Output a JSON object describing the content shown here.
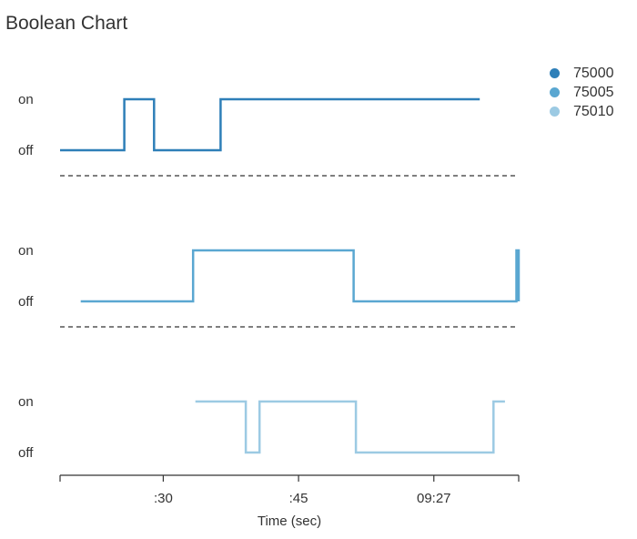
{
  "title": "Boolean Chart",
  "chart_data": {
    "type": "line",
    "title": "Boolean Chart",
    "xlabel": "Time (sec)",
    "x_ticks": [
      ":30",
      ":45",
      "09:27"
    ],
    "state_labels": [
      "on",
      "off"
    ],
    "series": [
      {
        "name": "75000",
        "color": "#2e7fb8",
        "points": [
          [
            0.0,
            0
          ],
          [
            0.14,
            0
          ],
          [
            0.14,
            1
          ],
          [
            0.205,
            1
          ],
          [
            0.205,
            0
          ],
          [
            0.35,
            0
          ],
          [
            0.35,
            1
          ],
          [
            0.915,
            1
          ]
        ]
      },
      {
        "name": "75005",
        "color": "#5aa7d1",
        "points": [
          [
            0.045,
            0
          ],
          [
            0.29,
            0
          ],
          [
            0.29,
            1
          ],
          [
            0.64,
            1
          ],
          [
            0.64,
            0
          ],
          [
            0.995,
            0
          ],
          [
            0.995,
            1
          ],
          [
            1.0,
            1
          ],
          [
            1.0,
            0
          ]
        ]
      },
      {
        "name": "75010",
        "color": "#9ccae3",
        "points": [
          [
            0.295,
            1
          ],
          [
            0.405,
            1
          ],
          [
            0.405,
            0
          ],
          [
            0.435,
            0
          ],
          [
            0.435,
            1
          ],
          [
            0.645,
            1
          ],
          [
            0.645,
            0
          ],
          [
            0.945,
            0
          ],
          [
            0.945,
            1
          ],
          [
            0.97,
            1
          ]
        ]
      }
    ],
    "grid": false,
    "legend": "top-right"
  }
}
